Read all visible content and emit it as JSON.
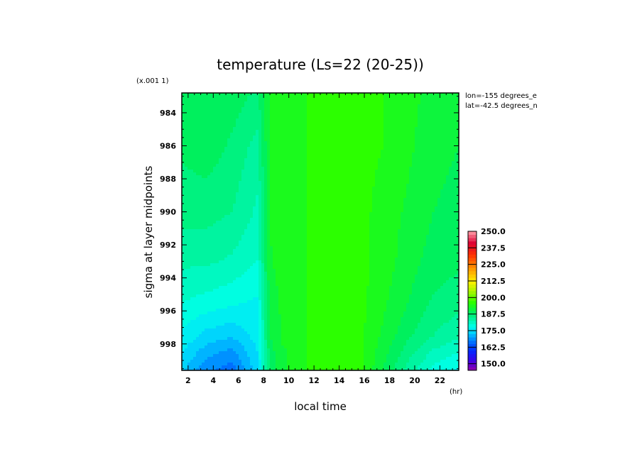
{
  "chart_data": {
    "type": "heatmap",
    "title": "temperature (Ls=22 (20-25))",
    "xlabel": "local time",
    "x_unit": "(hr)",
    "ylabel": "sigma at layer midpoints",
    "y_scale_note": "(x.001 1)",
    "annotations": [
      "lon=-155 degrees_e",
      "lat=-42.5 degrees_n"
    ],
    "x_ticks": [
      "2",
      "4",
      "6",
      "8",
      "10",
      "12",
      "14",
      "16",
      "18",
      "20",
      "22"
    ],
    "y_ticks": [
      "984",
      "986",
      "988",
      "990",
      "992",
      "994",
      "996",
      "998"
    ],
    "xlim": [
      1.5,
      23.5
    ],
    "ylim": [
      982.8,
      999.6
    ],
    "colorbar": {
      "range": [
        145,
        250
      ],
      "tick_labels": [
        "250.0",
        "237.5",
        "225.0",
        "212.5",
        "200.0",
        "187.5",
        "175.0",
        "162.5",
        "150.0"
      ],
      "tick_values": [
        250,
        237.5,
        225,
        212.5,
        200,
        187.5,
        175,
        162.5,
        150
      ]
    },
    "x": [
      1.5,
      3.5,
      5.5,
      7.5,
      8.5,
      9.5,
      11.5,
      13.5,
      15.5,
      17.5,
      19.5,
      21.5,
      23.5
    ],
    "y": [
      982.8,
      986,
      990,
      993,
      995.5,
      997.5,
      998.5,
      999.6
    ],
    "z": [
      [
        189,
        190,
        189,
        187,
        193,
        194,
        195,
        197,
        196,
        195,
        193,
        192,
        190
      ],
      [
        188,
        189,
        187,
        184,
        193,
        194,
        195,
        197,
        196,
        195,
        193,
        191,
        190
      ],
      [
        186,
        186,
        185,
        182,
        193,
        194,
        195,
        197,
        196,
        194,
        192,
        190,
        189
      ],
      [
        183,
        183,
        182,
        180,
        192,
        194,
        195,
        197,
        196,
        194,
        191,
        189,
        188
      ],
      [
        180,
        179,
        178,
        177,
        191,
        193,
        195,
        197,
        196,
        193,
        190,
        187,
        186
      ],
      [
        177,
        174,
        173,
        176,
        190,
        193,
        195,
        197,
        196,
        192,
        188,
        185,
        183
      ],
      [
        175,
        171,
        169,
        175,
        189,
        192,
        195,
        197,
        196,
        191,
        186,
        182,
        180
      ],
      [
        173,
        168,
        166,
        174,
        188,
        192,
        195,
        197,
        196,
        190,
        184,
        179,
        177
      ]
    ]
  }
}
